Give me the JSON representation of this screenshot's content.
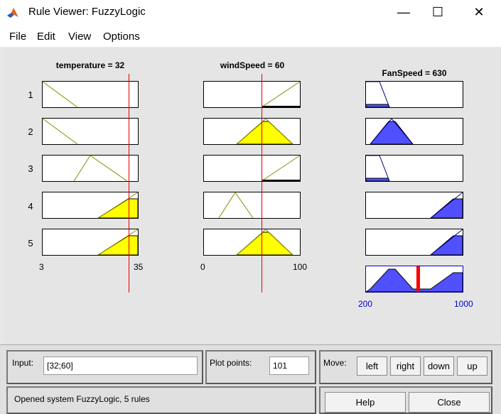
{
  "window": {
    "title": "Rule Viewer: FuzzyLogic",
    "minimize": "—",
    "maximize": "☐",
    "close": "✕"
  },
  "menu": [
    "File",
    "Edit",
    "View",
    "Options"
  ],
  "inputs": [
    {
      "header": "temperature = 32",
      "range_labels": [
        "3",
        "35"
      ]
    },
    {
      "header": "windSpeed = 60",
      "range_labels": [
        "0",
        "100"
      ]
    }
  ],
  "output": {
    "header": "FanSpeed = 630",
    "range_labels": [
      "200",
      "1000"
    ],
    "value": 630
  },
  "rule_numbers": [
    "1",
    "2",
    "3",
    "4",
    "5"
  ],
  "colors": {
    "input_fill": "#ffff00",
    "input_line": "#8a8a00",
    "output_fill": "#5050ff",
    "output_line": "#000080",
    "cursor": "#e00000"
  },
  "controls": {
    "input_label": "Input:",
    "input_value": "[32;60]",
    "plot_points_label": "Plot points:",
    "plot_points_value": "101",
    "move_label": "Move:",
    "btn_left": "left",
    "btn_right": "right",
    "btn_down": "down",
    "btn_up": "up",
    "status": "Opened system FuzzyLogic, 5 rules",
    "help": "Help",
    "close": "Close"
  }
}
